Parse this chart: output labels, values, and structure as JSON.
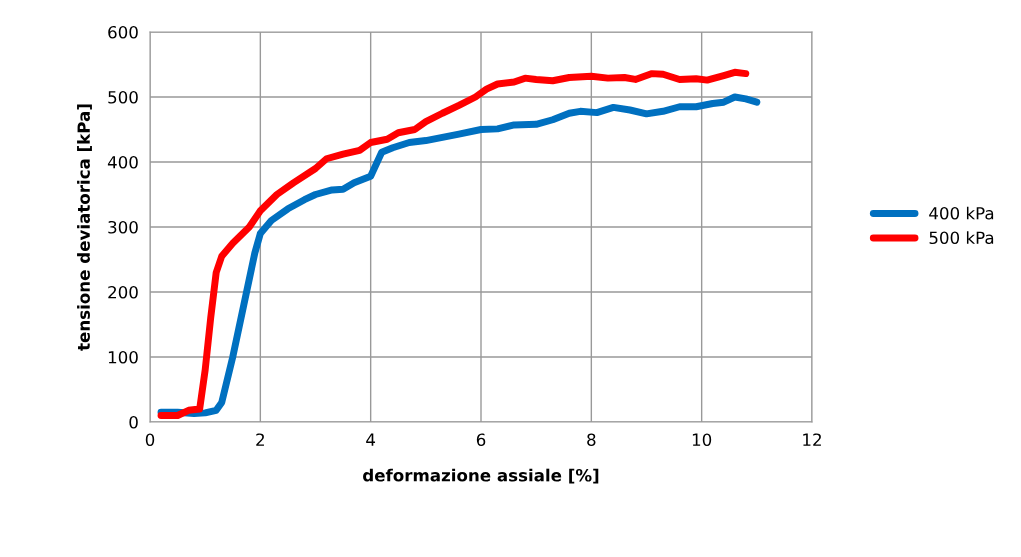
{
  "chart_data": {
    "type": "line",
    "xlabel": "deformazione assiale [%]",
    "ylabel": "tensione deviatorica [kPa]",
    "xlim": [
      0,
      12
    ],
    "xticks": [
      0,
      2,
      4,
      6,
      8,
      10,
      12
    ],
    "ylim": [
      0,
      600
    ],
    "yticks": [
      0,
      100,
      200,
      300,
      400,
      500,
      600
    ],
    "grid": true,
    "legend": "right",
    "marker": "none",
    "line_style": "solid",
    "series": [
      {
        "name": "400 kPa",
        "color": "#0070c0",
        "x": [
          0.2,
          0.5,
          0.8,
          1.0,
          1.2,
          1.3,
          1.5,
          1.7,
          1.9,
          2.0,
          2.2,
          2.5,
          2.8,
          3.0,
          3.3,
          3.5,
          3.7,
          4.0,
          4.2,
          4.4,
          4.7,
          5.0,
          5.3,
          5.6,
          6.0,
          6.3,
          6.6,
          7.0,
          7.3,
          7.6,
          7.8,
          8.1,
          8.4,
          8.7,
          9.0,
          9.3,
          9.6,
          9.9,
          10.2,
          10.4,
          10.6,
          10.8,
          11.0
        ],
        "values": [
          15,
          15,
          13,
          14,
          18,
          30,
          100,
          180,
          260,
          290,
          310,
          328,
          342,
          350,
          357,
          358,
          368,
          378,
          415,
          422,
          430,
          433,
          438,
          443,
          450,
          451,
          457,
          458,
          465,
          475,
          478,
          476,
          484,
          480,
          474,
          478,
          485,
          485,
          490,
          492,
          500,
          497,
          492
        ]
      },
      {
        "name": "500 kPa",
        "color": "#ff0000",
        "x": [
          0.2,
          0.5,
          0.7,
          0.9,
          1.0,
          1.1,
          1.2,
          1.3,
          1.5,
          1.8,
          2.0,
          2.3,
          2.6,
          3.0,
          3.2,
          3.5,
          3.8,
          4.0,
          4.3,
          4.5,
          4.8,
          5.0,
          5.3,
          5.6,
          5.9,
          6.1,
          6.3,
          6.6,
          6.8,
          7.0,
          7.3,
          7.6,
          8.0,
          8.3,
          8.6,
          8.8,
          9.1,
          9.3,
          9.6,
          9.9,
          10.1,
          10.4,
          10.6,
          10.8
        ],
        "values": [
          10,
          10,
          18,
          20,
          80,
          160,
          230,
          255,
          275,
          300,
          325,
          350,
          368,
          390,
          405,
          412,
          418,
          430,
          435,
          445,
          450,
          462,
          475,
          487,
          500,
          512,
          520,
          523,
          529,
          527,
          525,
          530,
          532,
          529,
          530,
          527,
          536,
          535,
          527,
          528,
          526,
          533,
          538,
          536
        ]
      }
    ]
  }
}
